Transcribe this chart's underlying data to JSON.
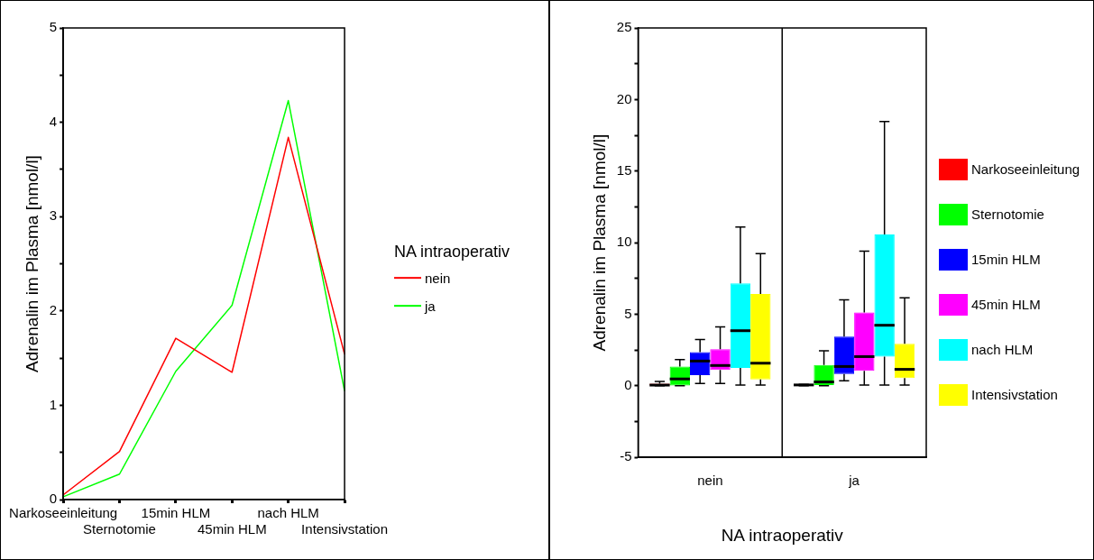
{
  "chart_data": [
    {
      "type": "line",
      "categories": [
        "Narkoseeinleitung",
        "Sternotomie",
        "15min HLM",
        "45min HLM",
        "nach HLM",
        "Intensivstation"
      ],
      "series": [
        {
          "name": "nein",
          "color": "#ff0000",
          "values": [
            0.05,
            0.51,
            1.71,
            1.35,
            3.84,
            1.54
          ]
        },
        {
          "name": "ja",
          "color": "#00ff00",
          "values": [
            0.03,
            0.27,
            1.36,
            2.06,
            4.23,
            1.15
          ]
        }
      ],
      "ylabel": "Adrenalin im Plasma [nmol/l]",
      "ylim": [
        0,
        5
      ],
      "yticks": [
        0,
        {
          "value": 0.5,
          "label": null
        },
        1,
        {
          "value": 1.5,
          "label": null
        },
        2,
        {
          "value": 2.5,
          "label": null
        },
        3,
        {
          "value": 3.5,
          "label": null
        },
        4,
        {
          "value": 4.5,
          "label": null
        },
        5
      ],
      "legend": "right",
      "legend_title": "NA intraoperativ",
      "marker": "none",
      "line_style": "solid"
    },
    {
      "type": "box",
      "categories": [
        "nein",
        "ja"
      ],
      "series": [
        {
          "name": "Narkoseeinleitung",
          "color": "#ff0000",
          "boxes": [
            {
              "low": 0,
              "q1": 0,
              "median": 0.05,
              "q3": 0.15,
              "high": 0.3
            },
            {
              "low": 0,
              "q1": 0,
              "median": 0.06,
              "q3": 0.1,
              "high": 0.1
            }
          ]
        },
        {
          "name": "Sternotomie",
          "color": "#00ff00",
          "boxes": [
            {
              "low": 0,
              "q1": 0.02,
              "median": 0.48,
              "q3": 1.35,
              "high": 1.83
            },
            {
              "low": 0,
              "q1": 0.06,
              "median": 0.27,
              "q3": 1.46,
              "high": 2.44
            }
          ]
        },
        {
          "name": "15min HLM",
          "color": "#0000ff",
          "boxes": [
            {
              "low": 0.17,
              "q1": 0.75,
              "median": 1.73,
              "q3": 2.35,
              "high": 3.23
            },
            {
              "low": 0.35,
              "q1": 0.83,
              "median": 1.35,
              "q3": 3.44,
              "high": 6.0
            }
          ]
        },
        {
          "name": "45min HLM",
          "color": "#ff00ff",
          "boxes": [
            {
              "low": 0.17,
              "q1": 1.1,
              "median": 1.42,
              "q3": 2.56,
              "high": 4.12
            },
            {
              "low": 0.06,
              "q1": 1.04,
              "median": 2.04,
              "q3": 5.13,
              "high": 9.4
            }
          ]
        },
        {
          "name": "nach HLM",
          "color": "#00ffff",
          "boxes": [
            {
              "low": 0.06,
              "q1": 1.25,
              "median": 3.85,
              "q3": 7.15,
              "high": 11.1
            },
            {
              "low": 0.06,
              "q1": 2.04,
              "median": 4.23,
              "q3": 10.58,
              "high": 18.46
            }
          ]
        },
        {
          "name": "Intensivstation",
          "color": "#ffff00",
          "boxes": [
            {
              "low": 0.06,
              "q1": 0.44,
              "median": 1.58,
              "q3": 6.42,
              "high": 9.23
            },
            {
              "low": 0.06,
              "q1": 0.54,
              "median": 1.15,
              "q3": 2.94,
              "high": 6.15
            }
          ]
        }
      ],
      "xlabel": "NA intraoperativ",
      "ylabel": "Adrenalin im Plasma [nmol/l]",
      "ylim": [
        -5,
        25
      ],
      "yticks": [
        -5,
        {
          "value": -2.5,
          "label": null
        },
        0,
        {
          "value": 2.5,
          "label": null
        },
        5,
        {
          "value": 7.5,
          "label": null
        },
        10,
        {
          "value": 12.5,
          "label": null
        },
        15,
        {
          "value": 17.5,
          "label": null
        },
        20,
        {
          "value": 22.5,
          "label": null
        },
        25
      ],
      "legend": "right"
    }
  ]
}
